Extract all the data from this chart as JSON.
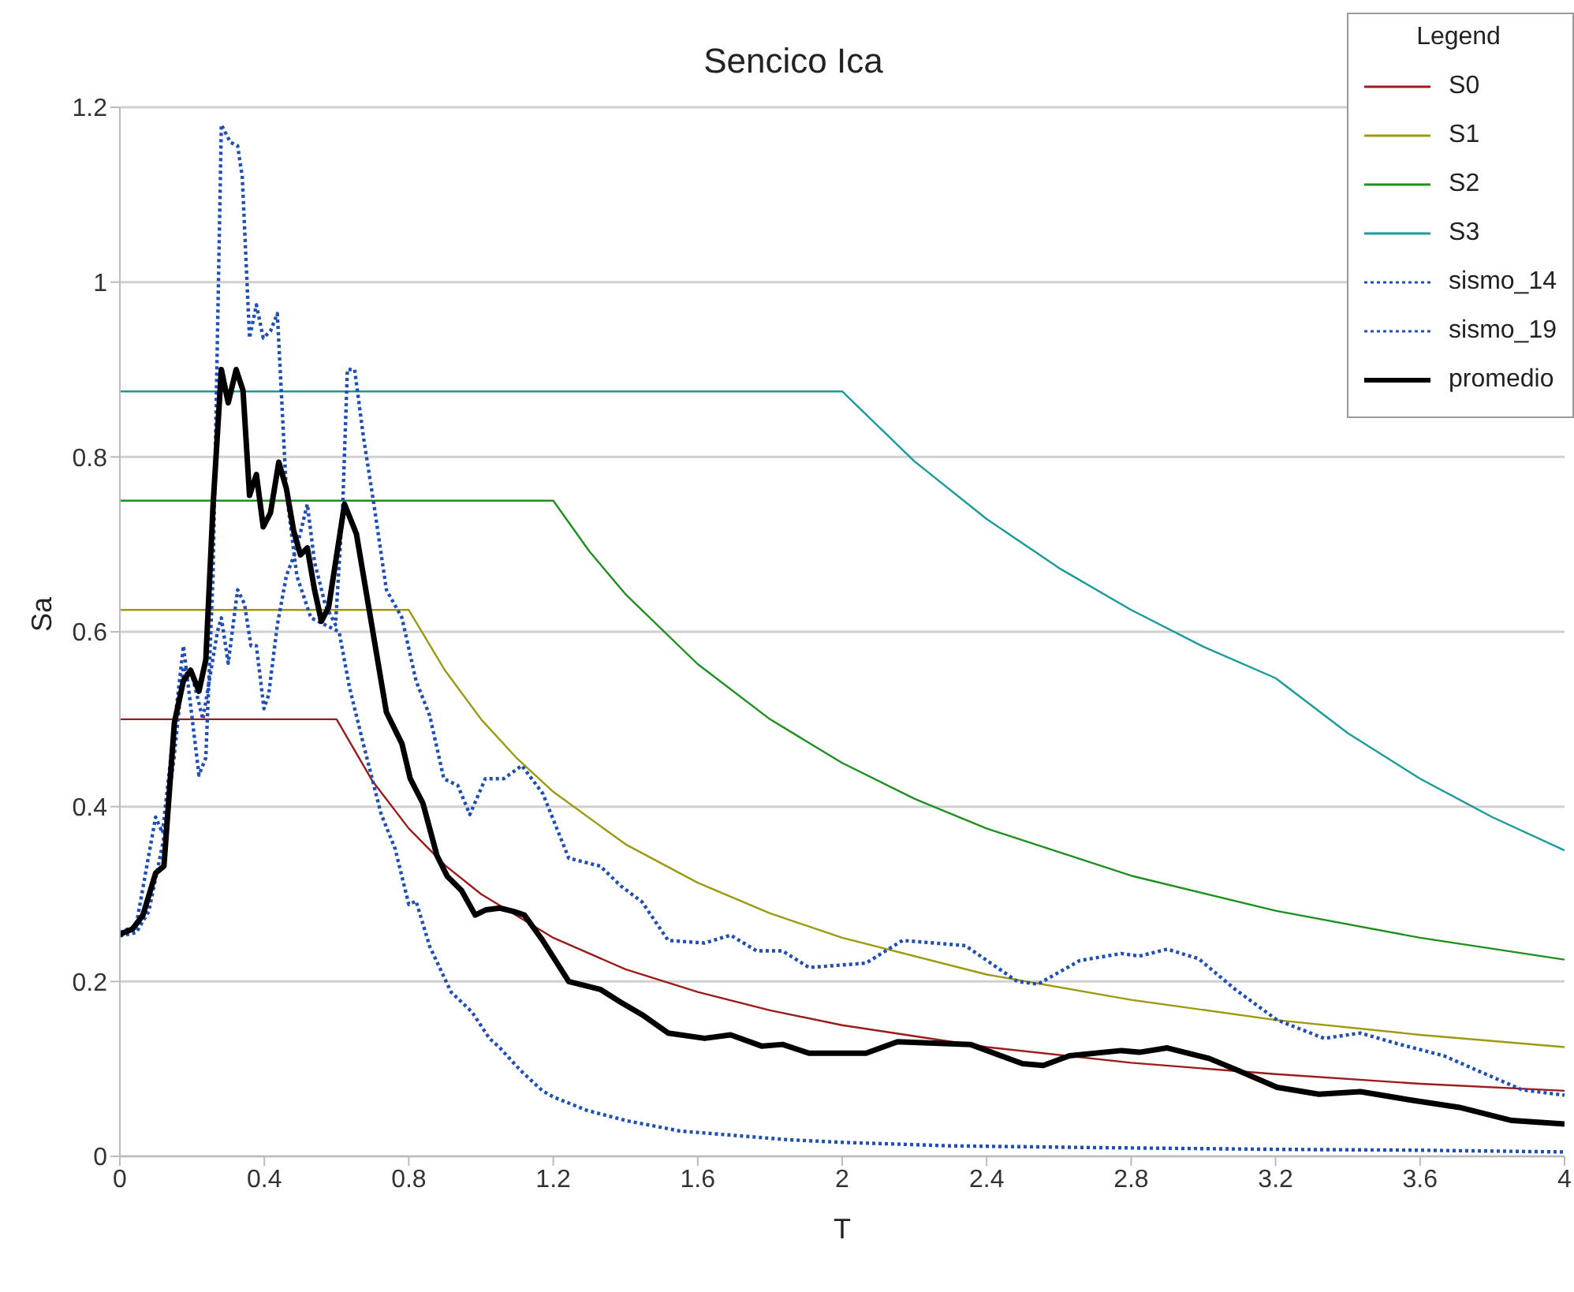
{
  "chart_data": {
    "type": "line",
    "title": "Sencico Ica",
    "xlabel": "T",
    "ylabel": "Sa",
    "legend_title": "Legend",
    "legend": "top right",
    "grid": "y",
    "marker": "none",
    "xlim": [
      0,
      4
    ],
    "ylim": [
      0,
      1.2
    ],
    "xticks": [
      0,
      0.4,
      0.8,
      1.2,
      1.6,
      2,
      2.4,
      2.8,
      3.2,
      3.6,
      4
    ],
    "yticks": [
      0,
      0.2,
      0.4,
      0.6,
      0.8,
      1,
      1.2
    ],
    "series": [
      {
        "name": "S0",
        "color": "#9b1c1c",
        "line_style": "solid",
        "x": [
          0,
          0.6,
          0.7,
          0.8,
          0.9,
          1.0,
          1.2,
          1.4,
          1.6,
          1.8,
          2.0,
          2.4,
          2.8,
          3.2,
          3.6,
          4.0
        ],
        "values": [
          0.5,
          0.5,
          0.429,
          0.375,
          0.333,
          0.3,
          0.25,
          0.214,
          0.188,
          0.167,
          0.15,
          0.125,
          0.107,
          0.094,
          0.083,
          0.075
        ]
      },
      {
        "name": "S1",
        "color": "#9c9a10",
        "line_style": "solid",
        "x": [
          0,
          0.8,
          0.9,
          1.0,
          1.1,
          1.2,
          1.4,
          1.6,
          1.8,
          2.0,
          2.4,
          2.8,
          3.2,
          3.6,
          4.0
        ],
        "values": [
          0.625,
          0.625,
          0.556,
          0.5,
          0.455,
          0.417,
          0.357,
          0.313,
          0.278,
          0.25,
          0.208,
          0.179,
          0.156,
          0.139,
          0.125
        ]
      },
      {
        "name": "S2",
        "color": "#1f8f1f",
        "line_style": "solid",
        "x": [
          0,
          1.2,
          1.3,
          1.4,
          1.6,
          1.8,
          2.0,
          2.2,
          2.4,
          2.8,
          3.2,
          3.6,
          4.0
        ],
        "values": [
          0.75,
          0.75,
          0.692,
          0.643,
          0.563,
          0.5,
          0.45,
          0.409,
          0.375,
          0.321,
          0.281,
          0.25,
          0.225
        ]
      },
      {
        "name": "S3",
        "color": "#1a9a9a",
        "line_style": "solid",
        "x": [
          0,
          2.0,
          2.2,
          2.4,
          2.6,
          2.8,
          3.0,
          3.2,
          3.4,
          3.6,
          3.8,
          4.0
        ],
        "values": [
          0.875,
          0.875,
          0.795,
          0.729,
          0.673,
          0.625,
          0.583,
          0.547,
          0.484,
          0.432,
          0.388,
          0.35
        ]
      },
      {
        "name": "sismo_14",
        "color": "#1f4fb4",
        "line_style": "dotted",
        "x": [
          0,
          0.045,
          0.099,
          0.118,
          0.141,
          0.176,
          0.19,
          0.219,
          0.238,
          0.258,
          0.281,
          0.306,
          0.326,
          0.339,
          0.359,
          0.378,
          0.397,
          0.417,
          0.436,
          0.461,
          0.49,
          0.529,
          0.568,
          0.607,
          0.636,
          0.674,
          0.723,
          0.762,
          0.8,
          0.82,
          0.858,
          0.917,
          0.975,
          1.023,
          1.05,
          1.11,
          1.17,
          1.2,
          1.29,
          1.4,
          1.55,
          1.7,
          1.85,
          2.0,
          2.3,
          2.7,
          3.2,
          3.6,
          4.0
        ],
        "values": [
          0.256,
          0.264,
          0.388,
          0.37,
          0.456,
          0.584,
          0.536,
          0.436,
          0.456,
          0.664,
          1.18,
          1.16,
          1.156,
          1.12,
          0.936,
          0.974,
          0.936,
          0.944,
          0.964,
          0.76,
          0.664,
          0.616,
          0.608,
          0.6,
          0.536,
          0.472,
          0.392,
          0.352,
          0.288,
          0.292,
          0.24,
          0.188,
          0.165,
          0.135,
          0.125,
          0.098,
          0.075,
          0.068,
          0.053,
          0.041,
          0.029,
          0.024,
          0.019,
          0.016,
          0.012,
          0.01,
          0.008,
          0.007,
          0.005
        ]
      },
      {
        "name": "sismo_19",
        "color": "#1f4fb4",
        "line_style": "dotted",
        "x": [
          0,
          0.045,
          0.08,
          0.12,
          0.15,
          0.176,
          0.2,
          0.23,
          0.27,
          0.281,
          0.3,
          0.326,
          0.345,
          0.363,
          0.378,
          0.399,
          0.412,
          0.436,
          0.461,
          0.49,
          0.519,
          0.539,
          0.568,
          0.597,
          0.617,
          0.63,
          0.65,
          0.674,
          0.704,
          0.738,
          0.781,
          0.82,
          0.858,
          0.897,
          0.936,
          0.969,
          1.012,
          1.063,
          1.113,
          1.171,
          1.243,
          1.33,
          1.388,
          1.446,
          1.518,
          1.619,
          1.691,
          1.763,
          1.835,
          1.908,
          2.066,
          2.167,
          2.341,
          2.485,
          2.542,
          2.658,
          2.773,
          2.823,
          2.9,
          2.987,
          3.088,
          3.204,
          3.334,
          3.435,
          3.536,
          3.666,
          3.782,
          3.883,
          4.0
        ],
        "values": [
          0.252,
          0.256,
          0.28,
          0.36,
          0.456,
          0.56,
          0.55,
          0.5,
          0.6,
          0.616,
          0.564,
          0.648,
          0.632,
          0.584,
          0.584,
          0.512,
          0.528,
          0.608,
          0.664,
          0.696,
          0.746,
          0.68,
          0.632,
          0.608,
          0.744,
          0.9,
          0.9,
          0.824,
          0.744,
          0.648,
          0.616,
          0.544,
          0.504,
          0.432,
          0.424,
          0.391,
          0.432,
          0.432,
          0.447,
          0.415,
          0.341,
          0.332,
          0.309,
          0.291,
          0.247,
          0.244,
          0.253,
          0.235,
          0.235,
          0.216,
          0.221,
          0.247,
          0.241,
          0.2,
          0.197,
          0.224,
          0.232,
          0.229,
          0.237,
          0.226,
          0.191,
          0.156,
          0.135,
          0.141,
          0.129,
          0.115,
          0.094,
          0.076,
          0.07
        ]
      },
      {
        "name": "promedio",
        "color": "#000000",
        "line_style": "solid",
        "x": [
          0,
          0.035,
          0.064,
          0.099,
          0.122,
          0.151,
          0.176,
          0.196,
          0.219,
          0.238,
          0.258,
          0.281,
          0.3,
          0.322,
          0.341,
          0.359,
          0.378,
          0.397,
          0.417,
          0.44,
          0.461,
          0.481,
          0.5,
          0.519,
          0.539,
          0.558,
          0.578,
          0.622,
          0.655,
          0.694,
          0.738,
          0.781,
          0.804,
          0.839,
          0.878,
          0.907,
          0.946,
          0.984,
          1.014,
          1.052,
          1.091,
          1.12,
          1.169,
          1.243,
          1.33,
          1.388,
          1.446,
          1.518,
          1.619,
          1.691,
          1.778,
          1.835,
          1.908,
          2.066,
          2.153,
          2.355,
          2.499,
          2.557,
          2.629,
          2.773,
          2.823,
          2.9,
          3.016,
          3.103,
          3.204,
          3.32,
          3.435,
          3.565,
          3.709,
          3.854,
          4.0
        ],
        "values": [
          0.254,
          0.26,
          0.276,
          0.324,
          0.332,
          0.496,
          0.544,
          0.556,
          0.532,
          0.568,
          0.744,
          0.9,
          0.862,
          0.9,
          0.876,
          0.756,
          0.78,
          0.72,
          0.736,
          0.794,
          0.764,
          0.716,
          0.688,
          0.696,
          0.648,
          0.612,
          0.628,
          0.746,
          0.712,
          0.616,
          0.508,
          0.472,
          0.432,
          0.404,
          0.344,
          0.32,
          0.304,
          0.276,
          0.282,
          0.284,
          0.28,
          0.276,
          0.248,
          0.2,
          0.191,
          0.176,
          0.162,
          0.141,
          0.135,
          0.139,
          0.126,
          0.128,
          0.118,
          0.118,
          0.131,
          0.128,
          0.106,
          0.104,
          0.115,
          0.121,
          0.119,
          0.124,
          0.112,
          0.097,
          0.079,
          0.071,
          0.074,
          0.065,
          0.056,
          0.041,
          0.037
        ]
      }
    ]
  }
}
